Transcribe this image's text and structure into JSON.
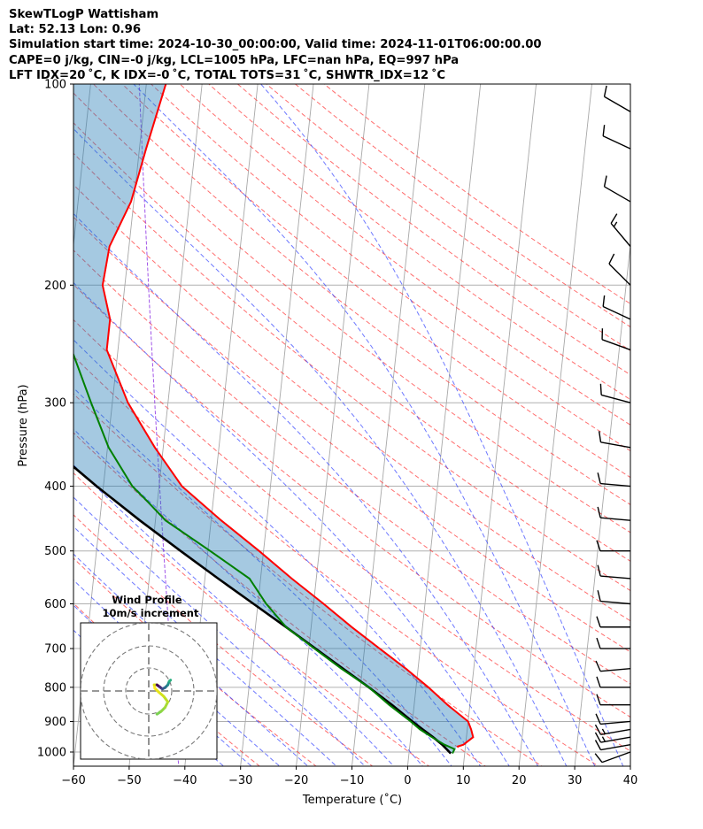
{
  "header": {
    "line1": "SkewTLogP Wattisham",
    "line2": "Lat: 52.13   Lon: 0.96",
    "line3": "Simulation start time: 2024-10-30_00:00:00, Valid time: 2024-11-01T06:00:00.00",
    "line4": "CAPE=0 j/kg, CIN=-0 j/kg, LCL=1005 hPa, LFC=nan hPa, EQ=997 hPa",
    "line5": "LFT IDX=20 ˚C, K IDX=-0 ˚C, TOTAL TOTS=31 ˚C, SHWTR_IDX=12 ˚C"
  },
  "chart_data": {
    "type": "line",
    "title": "",
    "xlabel": "Temperature (˚C)",
    "ylabel": "Pressure (hPa)",
    "xlim": [
      -60,
      40
    ],
    "ylim": [
      1050,
      100
    ],
    "y_scale": "log",
    "skew": true,
    "grid": true,
    "x_ticks": [
      -60,
      -50,
      -40,
      -30,
      -20,
      -10,
      0,
      10,
      20,
      30,
      40
    ],
    "y_ticks": [
      1000,
      900,
      800,
      700,
      600,
      500,
      400,
      300,
      200,
      100
    ],
    "series": [
      {
        "color": "#ff0000",
        "pressure": [
          982,
          975,
          950,
          925,
          900,
          850,
          800,
          750,
          700,
          650,
          600,
          550,
          500,
          450,
          400,
          350,
          300,
          250,
          225,
          200,
          175,
          150,
          125,
          100
        ],
        "temperature": [
          8.5,
          9.6,
          11.2,
          10.7,
          10.0,
          6.0,
          2.2,
          -2.2,
          -7.3,
          -12.7,
          -18.2,
          -24.4,
          -30.8,
          -38.2,
          -45.9,
          -51.5,
          -57.2,
          -62.0,
          -62.0,
          -64.0,
          -63.5,
          -60.5,
          -58.8,
          -56.5
        ]
      },
      {
        "color": "#008000",
        "pressure": [
          1005,
          990,
          975,
          950,
          925,
          900,
          850,
          800,
          750,
          700,
          650,
          600,
          550,
          500,
          450,
          420,
          400,
          350,
          300,
          250,
          225,
          200,
          180,
          160,
          150,
          125,
          100
        ],
        "temperature": [
          7.8,
          8.1,
          6.2,
          3.8,
          1.5,
          -0.3,
          -4.5,
          -8.5,
          -13.8,
          -19.0,
          -24.5,
          -28.5,
          -32.0,
          -39.6,
          -48.2,
          -52.0,
          -54.8,
          -59.8,
          -63.8,
          -68.3,
          -72.0,
          -75.8,
          -78.5,
          -79.2,
          -78.8,
          -79.5,
          -73.5
        ]
      },
      {
        "color": "#000000",
        "pressure": [
          1005,
          975,
          950,
          925,
          900,
          850,
          800,
          750,
          700,
          650,
          600,
          550,
          500,
          450,
          400,
          350,
          300,
          250,
          200,
          150,
          100
        ],
        "temperature": [
          7.5,
          5.8,
          4.0,
          2.0,
          0.0,
          -4.0,
          -8.5,
          -13.5,
          -18.8,
          -24.5,
          -30.8,
          -37.6,
          -44.9,
          -52.8,
          -61.2,
          -70.2,
          -79.8,
          -90.3,
          -102.0,
          -115.8,
          -134.7
        ]
      }
    ],
    "barbs": {
      "pressure": [
        1000,
        975,
        950,
        925,
        900,
        850,
        800,
        750,
        700,
        650,
        600,
        550,
        500,
        450,
        400,
        350,
        300,
        250,
        225,
        200,
        175,
        150,
        125,
        110
      ],
      "speed_kt": [
        10,
        10,
        15,
        15,
        10,
        10,
        10,
        10,
        10,
        10,
        10,
        10,
        10,
        10,
        10,
        10,
        10,
        10,
        10,
        10,
        15,
        10,
        10,
        10
      ],
      "direction_deg": [
        250,
        260,
        260,
        260,
        265,
        270,
        270,
        265,
        270,
        270,
        275,
        275,
        270,
        275,
        275,
        280,
        285,
        290,
        295,
        315,
        320,
        300,
        295,
        300
      ]
    },
    "inset": {
      "title_line1": "Wind Profile",
      "title_line2": "10m/s increment",
      "u": [
        1.2,
        1.8,
        2.4,
        2.8,
        2.2,
        1.5,
        0.9,
        0.8,
        1.2,
        1.6,
        2.0,
        2.4,
        2.8,
        3.0,
        3.2
      ],
      "v": [
        -3.4,
        -3.0,
        -2.4,
        -1.6,
        -0.8,
        -0.2,
        0.4,
        0.9,
        0.9,
        0.6,
        0.3,
        0.5,
        0.9,
        1.4,
        1.6
      ],
      "colors": [
        "#7ad151",
        "#8fd744",
        "#a5db36",
        "#bddf26",
        "#d2e21b",
        "#e7e419",
        "#fde725",
        "#d8e219",
        "#440154",
        "#472d7b",
        "#3b528b",
        "#2c728e",
        "#21918c",
        "#28ae80",
        "#2a788e"
      ]
    }
  }
}
